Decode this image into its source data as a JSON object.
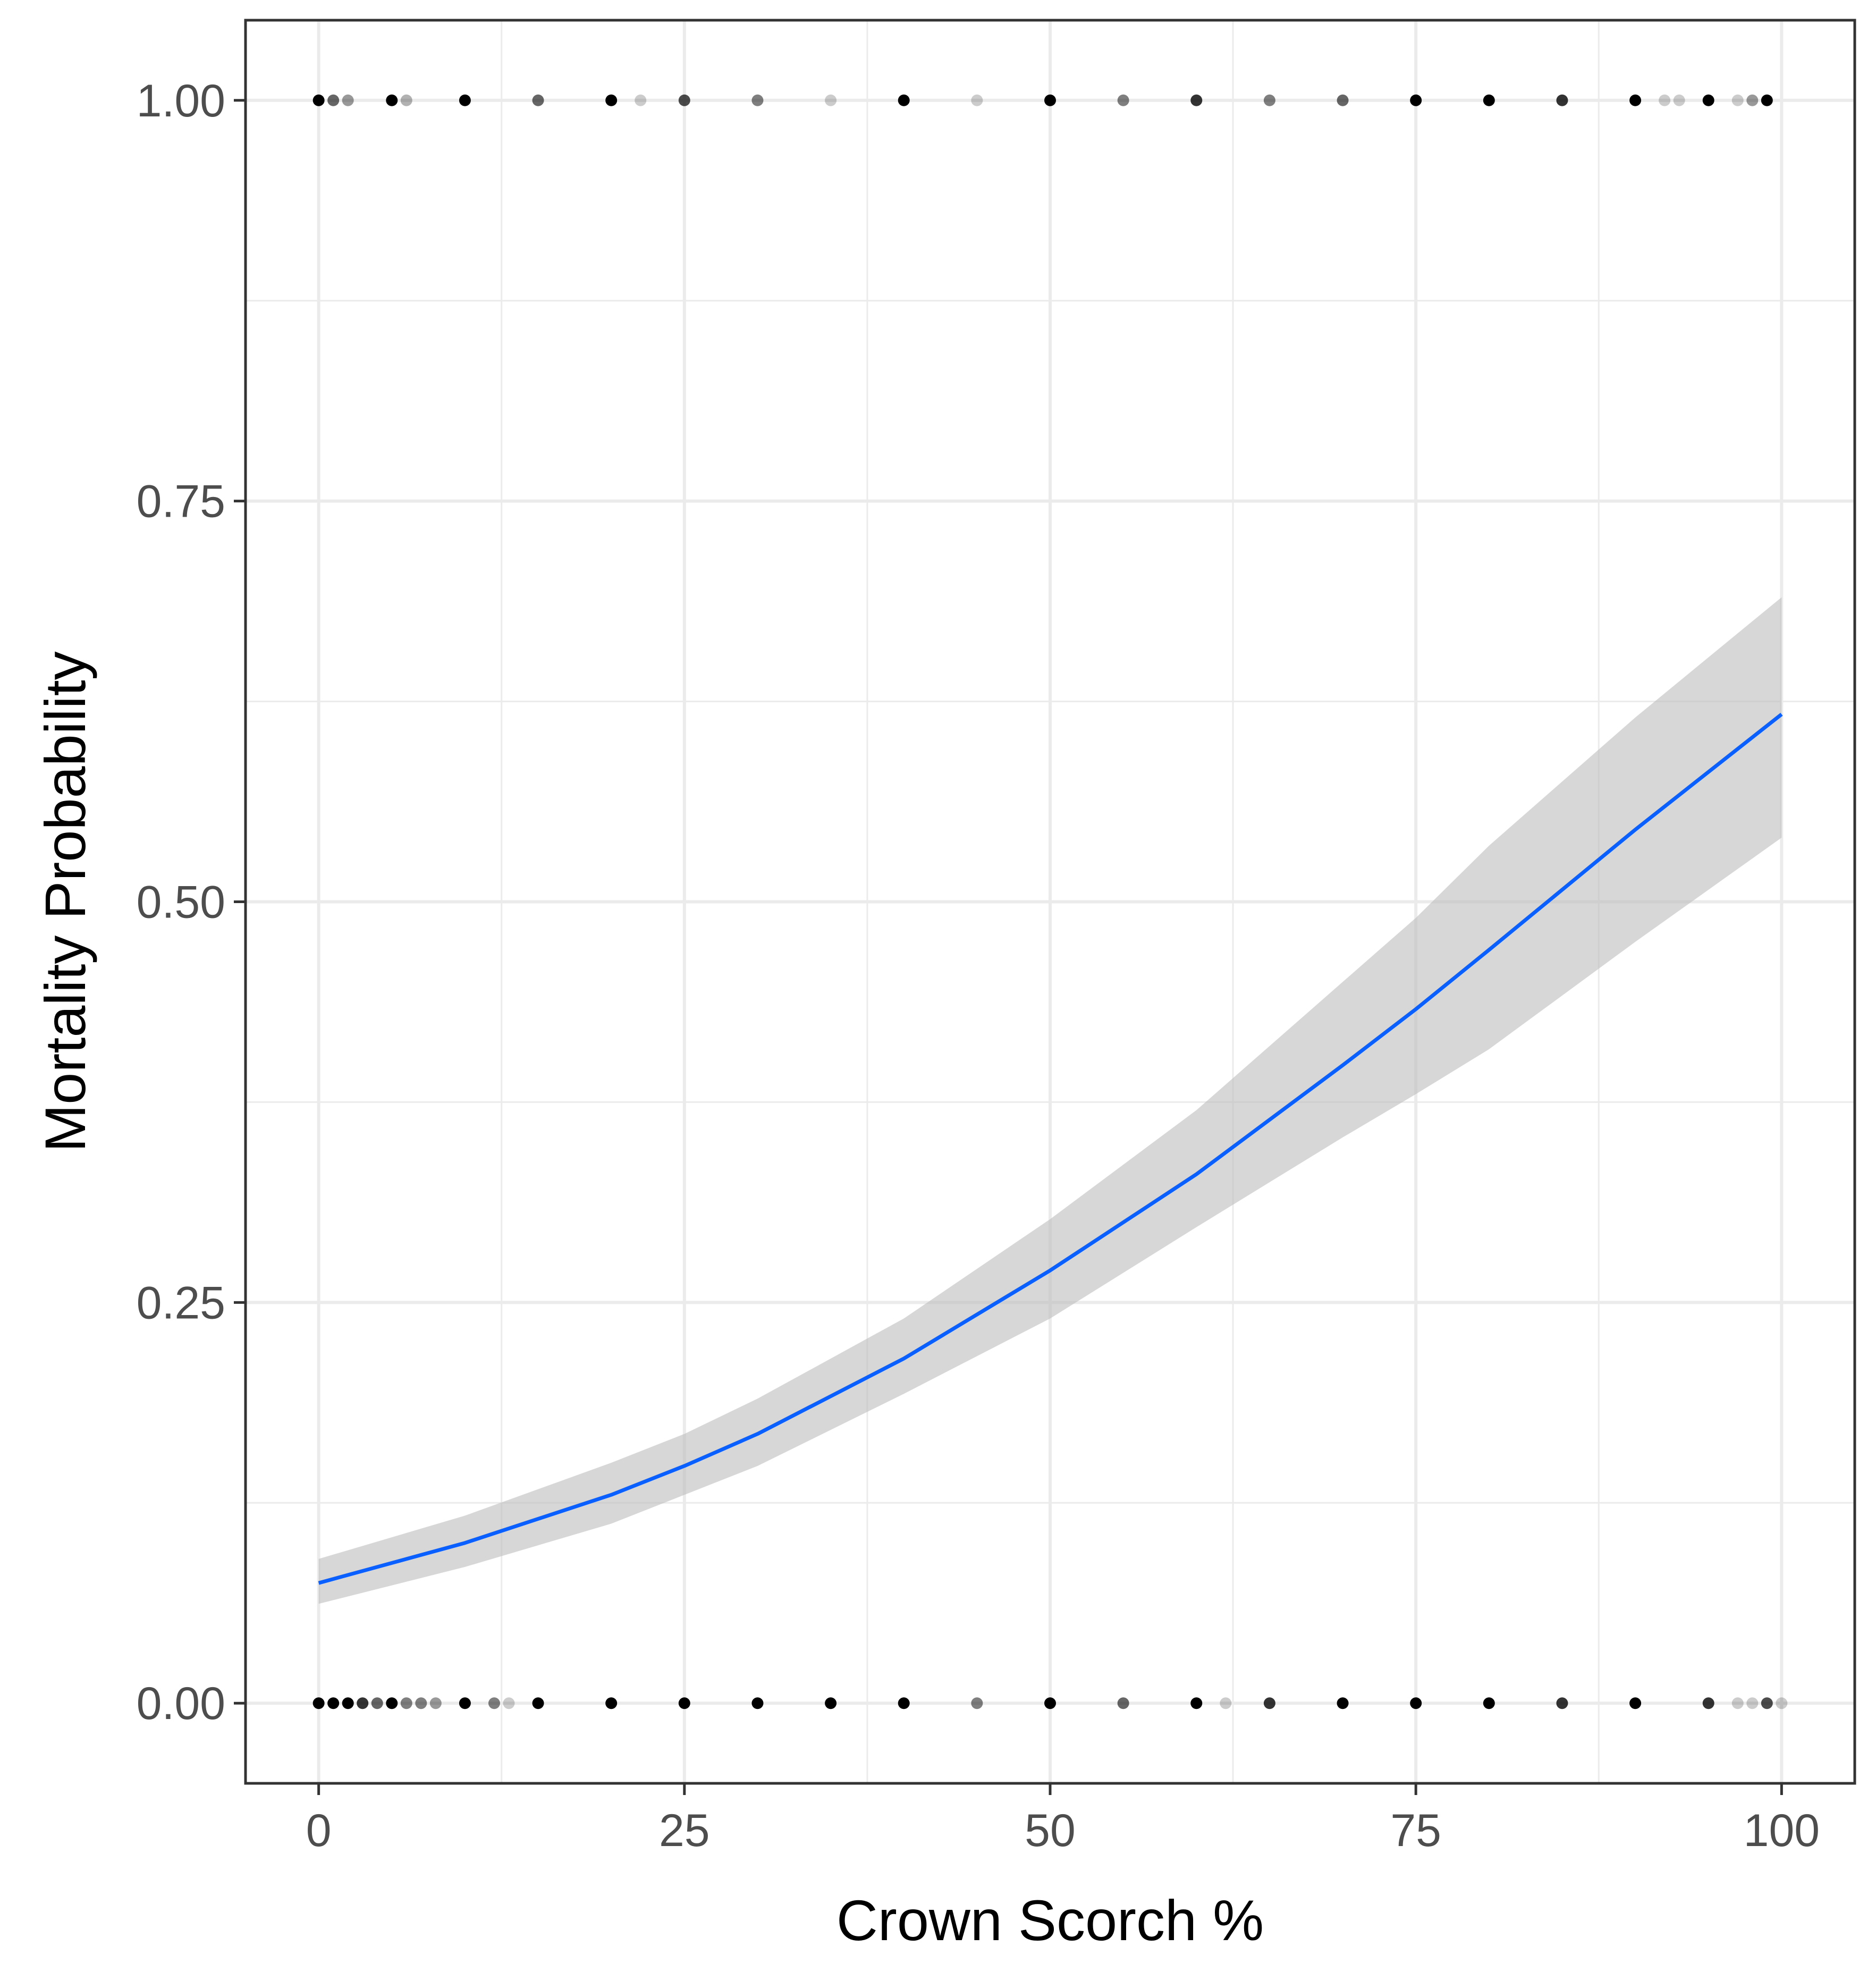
{
  "chart_data": {
    "type": "scatter",
    "xlabel": "Crown Scorch %",
    "ylabel": "Mortality Probability",
    "xlim": [
      -5,
      105
    ],
    "ylim": [
      -0.05,
      1.05
    ],
    "x_ticks": [
      0,
      25,
      50,
      75,
      100
    ],
    "x_tick_labels": [
      "0",
      "25",
      "50",
      "75",
      "100"
    ],
    "y_ticks": [
      0,
      0.25,
      0.5,
      0.75,
      1
    ],
    "y_tick_labels": [
      "0.00",
      "0.25",
      "0.50",
      "0.75",
      "1.00"
    ],
    "grid": true,
    "legend": "none",
    "points": [
      {
        "x": 0,
        "y": 1,
        "alpha": 1.0
      },
      {
        "x": 1,
        "y": 1,
        "alpha": 0.6
      },
      {
        "x": 2,
        "y": 1,
        "alpha": 0.4
      },
      {
        "x": 5,
        "y": 1,
        "alpha": 1.0
      },
      {
        "x": 6,
        "y": 1,
        "alpha": 0.3
      },
      {
        "x": 10,
        "y": 1,
        "alpha": 1.0
      },
      {
        "x": 15,
        "y": 1,
        "alpha": 0.6
      },
      {
        "x": 20,
        "y": 1,
        "alpha": 1.0
      },
      {
        "x": 22,
        "y": 1,
        "alpha": 0.2
      },
      {
        "x": 25,
        "y": 1,
        "alpha": 0.7
      },
      {
        "x": 30,
        "y": 1,
        "alpha": 0.5
      },
      {
        "x": 35,
        "y": 1,
        "alpha": 0.2
      },
      {
        "x": 40,
        "y": 1,
        "alpha": 1.0
      },
      {
        "x": 45,
        "y": 1,
        "alpha": 0.2
      },
      {
        "x": 50,
        "y": 1,
        "alpha": 1.0
      },
      {
        "x": 55,
        "y": 1,
        "alpha": 0.5
      },
      {
        "x": 60,
        "y": 1,
        "alpha": 0.8
      },
      {
        "x": 65,
        "y": 1,
        "alpha": 0.5
      },
      {
        "x": 70,
        "y": 1,
        "alpha": 0.6
      },
      {
        "x": 75,
        "y": 1,
        "alpha": 1.0
      },
      {
        "x": 80,
        "y": 1,
        "alpha": 1.0
      },
      {
        "x": 85,
        "y": 1,
        "alpha": 0.8
      },
      {
        "x": 90,
        "y": 1,
        "alpha": 1.0
      },
      {
        "x": 92,
        "y": 1,
        "alpha": 0.2
      },
      {
        "x": 93,
        "y": 1,
        "alpha": 0.2
      },
      {
        "x": 95,
        "y": 1,
        "alpha": 1.0
      },
      {
        "x": 97,
        "y": 1,
        "alpha": 0.2
      },
      {
        "x": 98,
        "y": 1,
        "alpha": 0.4
      },
      {
        "x": 99,
        "y": 1,
        "alpha": 1.0
      },
      {
        "x": 0,
        "y": 0,
        "alpha": 1.0
      },
      {
        "x": 1,
        "y": 0,
        "alpha": 1.0
      },
      {
        "x": 2,
        "y": 0,
        "alpha": 1.0
      },
      {
        "x": 3,
        "y": 0,
        "alpha": 0.8
      },
      {
        "x": 4,
        "y": 0,
        "alpha": 0.6
      },
      {
        "x": 5,
        "y": 0,
        "alpha": 1.0
      },
      {
        "x": 6,
        "y": 0,
        "alpha": 0.5
      },
      {
        "x": 7,
        "y": 0,
        "alpha": 0.5
      },
      {
        "x": 8,
        "y": 0,
        "alpha": 0.4
      },
      {
        "x": 10,
        "y": 0,
        "alpha": 1.0
      },
      {
        "x": 12,
        "y": 0,
        "alpha": 0.5
      },
      {
        "x": 13,
        "y": 0,
        "alpha": 0.2
      },
      {
        "x": 15,
        "y": 0,
        "alpha": 1.0
      },
      {
        "x": 20,
        "y": 0,
        "alpha": 1.0
      },
      {
        "x": 25,
        "y": 0,
        "alpha": 1.0
      },
      {
        "x": 30,
        "y": 0,
        "alpha": 1.0
      },
      {
        "x": 35,
        "y": 0,
        "alpha": 1.0
      },
      {
        "x": 40,
        "y": 0,
        "alpha": 1.0
      },
      {
        "x": 45,
        "y": 0,
        "alpha": 0.5
      },
      {
        "x": 50,
        "y": 0,
        "alpha": 1.0
      },
      {
        "x": 55,
        "y": 0,
        "alpha": 0.6
      },
      {
        "x": 60,
        "y": 0,
        "alpha": 1.0
      },
      {
        "x": 62,
        "y": 0,
        "alpha": 0.2
      },
      {
        "x": 65,
        "y": 0,
        "alpha": 0.8
      },
      {
        "x": 70,
        "y": 0,
        "alpha": 1.0
      },
      {
        "x": 75,
        "y": 0,
        "alpha": 1.0
      },
      {
        "x": 80,
        "y": 0,
        "alpha": 1.0
      },
      {
        "x": 85,
        "y": 0,
        "alpha": 0.8
      },
      {
        "x": 90,
        "y": 0,
        "alpha": 1.0
      },
      {
        "x": 95,
        "y": 0,
        "alpha": 0.8
      },
      {
        "x": 97,
        "y": 0,
        "alpha": 0.2
      },
      {
        "x": 98,
        "y": 0,
        "alpha": 0.2
      },
      {
        "x": 99,
        "y": 0,
        "alpha": 0.7
      },
      {
        "x": 100,
        "y": 0,
        "alpha": 0.2
      }
    ],
    "fit": {
      "type": "line",
      "color": "#0a5fff",
      "ribbon_color": "#bdbdbd",
      "x": [
        0,
        10,
        20,
        25,
        30,
        40,
        50,
        60,
        70,
        75,
        80,
        90,
        100
      ],
      "y": [
        0.075,
        0.1,
        0.13,
        0.148,
        0.168,
        0.215,
        0.27,
        0.33,
        0.398,
        0.433,
        0.47,
        0.545,
        0.617
      ],
      "lower": [
        0.062,
        0.085,
        0.112,
        0.13,
        0.148,
        0.193,
        0.24,
        0.297,
        0.353,
        0.38,
        0.408,
        0.475,
        0.54
      ],
      "upper": [
        0.09,
        0.117,
        0.15,
        0.168,
        0.19,
        0.24,
        0.302,
        0.37,
        0.45,
        0.49,
        0.535,
        0.615,
        0.69
      ]
    }
  }
}
